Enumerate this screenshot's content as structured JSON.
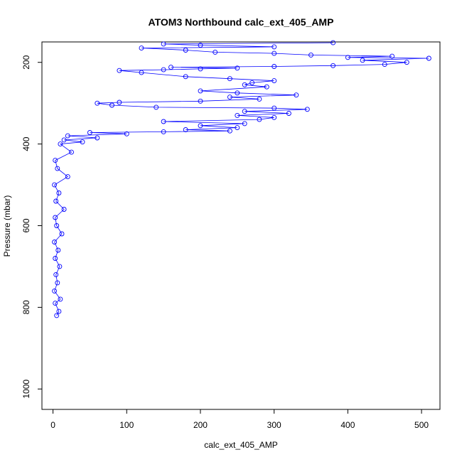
{
  "chart_data": {
    "type": "scatter",
    "title": "ATOM3 Northbound calc_ext_405_AMP",
    "xlabel": "calc_ext_405_AMP",
    "ylabel": "Pressure (mbar)",
    "xlim": [
      -15,
      525
    ],
    "ylim": [
      1050,
      150
    ],
    "y_inverted": true,
    "x_ticks": [
      0,
      100,
      200,
      300,
      400,
      500
    ],
    "y_ticks": [
      200,
      400,
      600,
      800,
      1000
    ],
    "grid": false,
    "legend": "none",
    "line_color": "#0000ff",
    "point_style": "open-circle",
    "series": [
      {
        "points": [
          [
            5,
            820
          ],
          [
            8,
            810
          ],
          [
            3,
            790
          ],
          [
            10,
            780
          ],
          [
            2,
            760
          ],
          [
            6,
            740
          ],
          [
            4,
            720
          ],
          [
            9,
            700
          ],
          [
            3,
            680
          ],
          [
            7,
            660
          ],
          [
            2,
            640
          ],
          [
            12,
            620
          ],
          [
            5,
            600
          ],
          [
            3,
            580
          ],
          [
            15,
            560
          ],
          [
            4,
            540
          ],
          [
            8,
            520
          ],
          [
            2,
            500
          ],
          [
            20,
            480
          ],
          [
            6,
            460
          ],
          [
            3,
            440
          ],
          [
            25,
            420
          ],
          [
            10,
            400
          ],
          [
            40,
            395
          ],
          [
            15,
            390
          ],
          [
            60,
            385
          ],
          [
            20,
            380
          ],
          [
            100,
            375
          ],
          [
            50,
            372
          ],
          [
            150,
            370
          ],
          [
            240,
            368
          ],
          [
            180,
            365
          ],
          [
            250,
            360
          ],
          [
            200,
            355
          ],
          [
            260,
            350
          ],
          [
            150,
            345
          ],
          [
            280,
            340
          ],
          [
            300,
            335
          ],
          [
            250,
            330
          ],
          [
            320,
            325
          ],
          [
            260,
            320
          ],
          [
            345,
            315
          ],
          [
            300,
            312
          ],
          [
            140,
            310
          ],
          [
            80,
            305
          ],
          [
            60,
            300
          ],
          [
            90,
            298
          ],
          [
            200,
            295
          ],
          [
            280,
            290
          ],
          [
            240,
            285
          ],
          [
            330,
            280
          ],
          [
            250,
            275
          ],
          [
            200,
            270
          ],
          [
            290,
            260
          ],
          [
            260,
            255
          ],
          [
            270,
            250
          ],
          [
            300,
            245
          ],
          [
            240,
            240
          ],
          [
            180,
            235
          ],
          [
            120,
            225
          ],
          [
            90,
            220
          ],
          [
            150,
            218
          ],
          [
            200,
            216
          ],
          [
            250,
            214
          ],
          [
            160,
            212
          ],
          [
            300,
            210
          ],
          [
            380,
            208
          ],
          [
            450,
            205
          ],
          [
            480,
            200
          ],
          [
            420,
            195
          ],
          [
            510,
            190
          ],
          [
            400,
            188
          ],
          [
            460,
            185
          ],
          [
            350,
            182
          ],
          [
            300,
            178
          ],
          [
            220,
            175
          ],
          [
            180,
            170
          ],
          [
            120,
            165
          ],
          [
            300,
            162
          ],
          [
            200,
            158
          ],
          [
            150,
            155
          ],
          [
            380,
            152
          ]
        ]
      }
    ]
  }
}
